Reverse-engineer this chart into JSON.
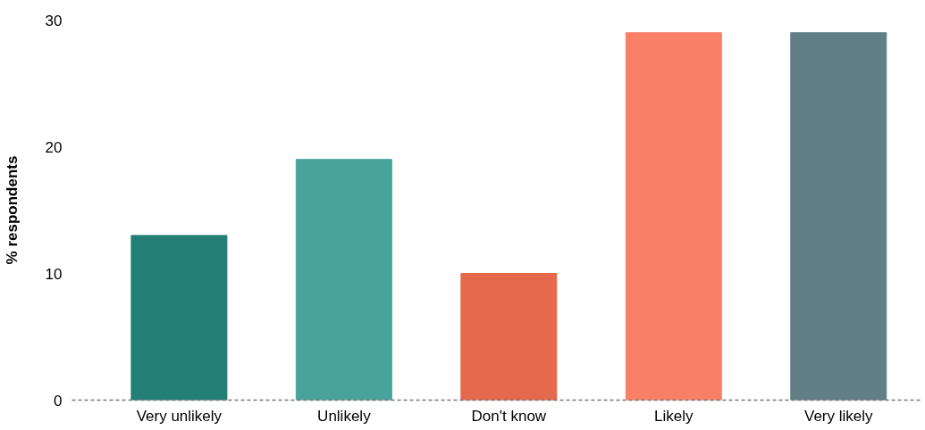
{
  "chart_data": {
    "type": "bar",
    "ylabel": "% respondents",
    "categories": [
      "Very unlikely",
      "Unlikely",
      "Don't know",
      "Likely",
      "Very likely"
    ],
    "values": [
      13,
      19,
      10,
      29,
      29
    ],
    "colors": [
      "#237e74",
      "#4aa39a",
      "#e5694d",
      "#f98066",
      "#617f84"
    ],
    "ylim": [
      0,
      30
    ],
    "yticks": [
      0,
      10,
      20,
      30
    ],
    "grid": false
  }
}
